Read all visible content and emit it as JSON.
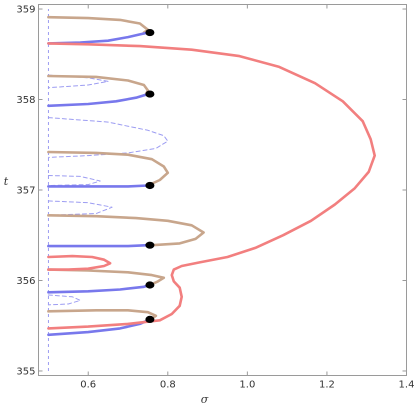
{
  "chart_data": {
    "type": "line",
    "xlabel": "σ",
    "ylabel": "t",
    "xlim": [
      0.475,
      1.4
    ],
    "ylim": [
      354.95,
      359.05
    ],
    "grid": false,
    "legend": "none",
    "xticks": [
      {
        "value": 0.6,
        "label": "0.6"
      },
      {
        "value": 0.8,
        "label": "0.8"
      },
      {
        "value": 1.0,
        "label": "1.0"
      },
      {
        "value": 1.2,
        "label": "1.2"
      },
      {
        "value": 1.4,
        "label": "1.4"
      }
    ],
    "yticks": [
      {
        "value": 355,
        "label": "355"
      },
      {
        "value": 356,
        "label": "356"
      },
      {
        "value": 357,
        "label": "357"
      },
      {
        "value": 358,
        "label": "358"
      },
      {
        "value": 359,
        "label": "359"
      }
    ],
    "colors": {
      "tan": "#c8a68c",
      "blue": "#7878ec",
      "red": "#f27f7f",
      "dashed": "#9c9cf2",
      "dot": "#000000"
    },
    "series": [
      {
        "style": "tan",
        "points": [
          [
            0.5,
            358.91
          ],
          [
            0.6,
            358.9
          ],
          [
            0.68,
            358.88
          ],
          [
            0.73,
            358.84
          ],
          [
            0.75,
            358.77
          ],
          [
            0.74,
            358.74
          ]
        ]
      },
      {
        "style": "blue",
        "points": [
          [
            0.5,
            358.62
          ],
          [
            0.58,
            358.63
          ],
          [
            0.65,
            358.65
          ],
          [
            0.7,
            358.69
          ],
          [
            0.73,
            358.72
          ],
          [
            0.75,
            358.74
          ]
        ]
      },
      {
        "style": "tan",
        "points": [
          [
            0.5,
            358.26
          ],
          [
            0.62,
            358.25
          ],
          [
            0.7,
            358.21
          ],
          [
            0.74,
            358.16
          ],
          [
            0.75,
            358.1
          ],
          [
            0.745,
            358.06
          ]
        ]
      },
      {
        "style": "blue",
        "points": [
          [
            0.5,
            357.93
          ],
          [
            0.6,
            357.95
          ],
          [
            0.67,
            357.98
          ],
          [
            0.72,
            358.02
          ],
          [
            0.75,
            358.06
          ]
        ]
      },
      {
        "style": "tan",
        "points": [
          [
            0.5,
            357.42
          ],
          [
            0.62,
            357.41
          ],
          [
            0.7,
            357.39
          ],
          [
            0.76,
            357.34
          ],
          [
            0.79,
            357.26
          ],
          [
            0.8,
            357.19
          ],
          [
            0.78,
            357.11
          ],
          [
            0.75,
            357.05
          ]
        ]
      },
      {
        "style": "blue",
        "points": [
          [
            0.5,
            357.04
          ],
          [
            0.6,
            357.04
          ],
          [
            0.7,
            357.04
          ],
          [
            0.75,
            357.05
          ]
        ]
      },
      {
        "style": "tan",
        "points": [
          [
            0.5,
            356.72
          ],
          [
            0.62,
            356.71
          ],
          [
            0.72,
            356.69
          ],
          [
            0.8,
            356.66
          ],
          [
            0.86,
            356.61
          ],
          [
            0.89,
            356.53
          ],
          [
            0.87,
            356.46
          ],
          [
            0.83,
            356.41
          ],
          [
            0.76,
            356.39
          ],
          [
            0.75,
            356.39
          ]
        ]
      },
      {
        "style": "blue",
        "points": [
          [
            0.5,
            356.38
          ],
          [
            0.62,
            356.38
          ],
          [
            0.7,
            356.38
          ],
          [
            0.75,
            356.39
          ]
        ]
      },
      {
        "style": "tan",
        "points": [
          [
            0.5,
            356.12
          ],
          [
            0.6,
            356.11
          ],
          [
            0.7,
            356.09
          ],
          [
            0.76,
            356.06
          ],
          [
            0.79,
            356.03
          ],
          [
            0.775,
            355.99
          ],
          [
            0.755,
            355.95
          ]
        ]
      },
      {
        "style": "blue",
        "points": [
          [
            0.5,
            355.87
          ],
          [
            0.6,
            355.88
          ],
          [
            0.68,
            355.9
          ],
          [
            0.74,
            355.93
          ],
          [
            0.755,
            355.95
          ]
        ]
      },
      {
        "style": "tan",
        "points": [
          [
            0.5,
            355.66
          ],
          [
            0.62,
            355.67
          ],
          [
            0.7,
            355.67
          ],
          [
            0.75,
            355.65
          ],
          [
            0.77,
            355.61
          ],
          [
            0.76,
            355.58
          ]
        ]
      },
      {
        "style": "blue",
        "points": [
          [
            0.5,
            355.4
          ],
          [
            0.6,
            355.43
          ],
          [
            0.68,
            355.47
          ],
          [
            0.73,
            355.52
          ],
          [
            0.755,
            355.57
          ]
        ]
      },
      {
        "style": "red",
        "points": [
          [
            0.5,
            356.26
          ],
          [
            0.56,
            356.27
          ],
          [
            0.61,
            356.26
          ],
          [
            0.64,
            356.23
          ],
          [
            0.655,
            356.19
          ],
          [
            0.64,
            356.16
          ],
          [
            0.6,
            356.13
          ],
          [
            0.55,
            356.12
          ],
          [
            0.5,
            356.12
          ]
        ]
      },
      {
        "style": "red",
        "points": [
          [
            0.5,
            355.47
          ],
          [
            0.6,
            355.49
          ],
          [
            0.7,
            355.52
          ],
          [
            0.78,
            355.56
          ],
          [
            0.81,
            355.63
          ],
          [
            0.83,
            355.72
          ],
          [
            0.835,
            355.82
          ],
          [
            0.83,
            355.92
          ],
          [
            0.815,
            355.99
          ],
          [
            0.81,
            356.06
          ],
          [
            0.815,
            356.12
          ],
          [
            0.835,
            356.16
          ],
          [
            0.88,
            356.2
          ],
          [
            0.95,
            356.26
          ],
          [
            1.02,
            356.36
          ],
          [
            1.09,
            356.5
          ],
          [
            1.16,
            356.66
          ],
          [
            1.22,
            356.84
          ],
          [
            1.27,
            357.02
          ],
          [
            1.305,
            357.2
          ],
          [
            1.32,
            357.38
          ],
          [
            1.31,
            357.56
          ],
          [
            1.29,
            357.76
          ],
          [
            1.24,
            357.98
          ],
          [
            1.17,
            358.18
          ],
          [
            1.08,
            358.36
          ],
          [
            0.98,
            358.48
          ],
          [
            0.86,
            358.55
          ],
          [
            0.73,
            358.59
          ],
          [
            0.6,
            358.61
          ],
          [
            0.5,
            358.62
          ]
        ]
      },
      {
        "style": "dashed",
        "points": [
          [
            0.5,
            358.27
          ],
          [
            0.6,
            358.24
          ],
          [
            0.65,
            358.2
          ],
          [
            0.6,
            358.16
          ],
          [
            0.5,
            358.13
          ]
        ]
      },
      {
        "style": "dashed",
        "points": [
          [
            0.5,
            357.8
          ],
          [
            0.65,
            357.75
          ],
          [
            0.75,
            357.66
          ],
          [
            0.79,
            357.6
          ],
          [
            0.8,
            357.54
          ],
          [
            0.77,
            357.46
          ],
          [
            0.7,
            357.41
          ],
          [
            0.6,
            357.38
          ],
          [
            0.5,
            357.36
          ]
        ]
      },
      {
        "style": "dashed",
        "points": [
          [
            0.5,
            357.16
          ],
          [
            0.58,
            357.15
          ],
          [
            0.63,
            357.1
          ],
          [
            0.6,
            357.06
          ],
          [
            0.5,
            357.05
          ]
        ]
      },
      {
        "style": "dashed",
        "points": [
          [
            0.5,
            356.88
          ],
          [
            0.6,
            356.86
          ],
          [
            0.66,
            356.81
          ],
          [
            0.62,
            356.74
          ],
          [
            0.5,
            356.72
          ]
        ]
      },
      {
        "style": "dashed",
        "points": [
          [
            0.5,
            355.84
          ],
          [
            0.56,
            355.82
          ],
          [
            0.58,
            355.78
          ],
          [
            0.55,
            355.74
          ],
          [
            0.5,
            355.73
          ]
        ]
      }
    ],
    "markers": [
      {
        "x": 0.755,
        "y": 358.74
      },
      {
        "x": 0.755,
        "y": 358.06
      },
      {
        "x": 0.755,
        "y": 357.05
      },
      {
        "x": 0.755,
        "y": 356.39
      },
      {
        "x": 0.755,
        "y": 355.95
      },
      {
        "x": 0.755,
        "y": 355.57
      }
    ],
    "critical_line": {
      "x": 0.5,
      "y_from": 355.0,
      "y_to": 359.0
    }
  }
}
